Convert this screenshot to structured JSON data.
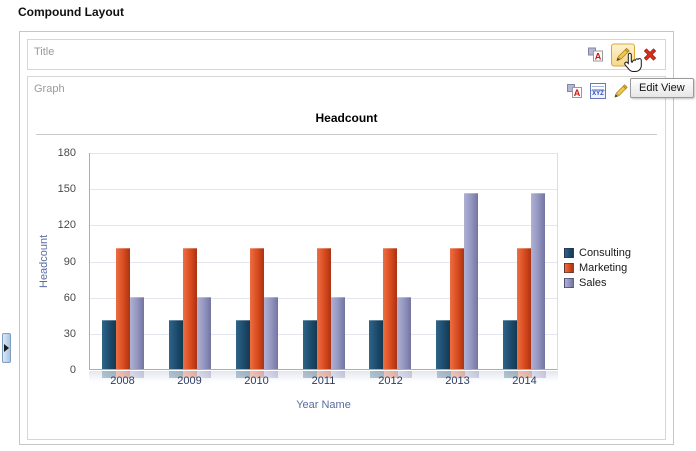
{
  "heading": "Compound Layout",
  "title_view": {
    "label": "Title"
  },
  "graph_view": {
    "label": "Graph"
  },
  "icons": {
    "format_letter": "A",
    "xyz_label": "XYZ"
  },
  "tooltip": {
    "text": "Edit View"
  },
  "chart_data": {
    "type": "bar",
    "title": "Headcount",
    "xlabel": "Year Name",
    "ylabel": "Headcount",
    "categories": [
      "2008",
      "2009",
      "2010",
      "2011",
      "2012",
      "2013",
      "2014"
    ],
    "series": [
      {
        "name": "Consulting",
        "color": "#1d4b6d",
        "gradient": [
          "#2f6589",
          "#1d4b6d",
          "#123a52"
        ],
        "values": [
          41,
          41,
          41,
          41,
          41,
          41,
          41
        ]
      },
      {
        "name": "Marketing",
        "color": "#d84a1e",
        "gradient": [
          "#ec6f43",
          "#d84a1e",
          "#a93312"
        ],
        "values": [
          100,
          100,
          100,
          100,
          100,
          100,
          100
        ]
      },
      {
        "name": "Sales",
        "color": "#9193bf",
        "gradient": [
          "#b0b1d2",
          "#9193bf",
          "#73749f"
        ],
        "values": [
          60,
          60,
          60,
          60,
          60,
          146,
          146
        ]
      }
    ],
    "ylim": [
      0,
      180
    ],
    "yticks": [
      180,
      150,
      120,
      90,
      60,
      30,
      0
    ],
    "grid": true,
    "legend_position": "right"
  }
}
